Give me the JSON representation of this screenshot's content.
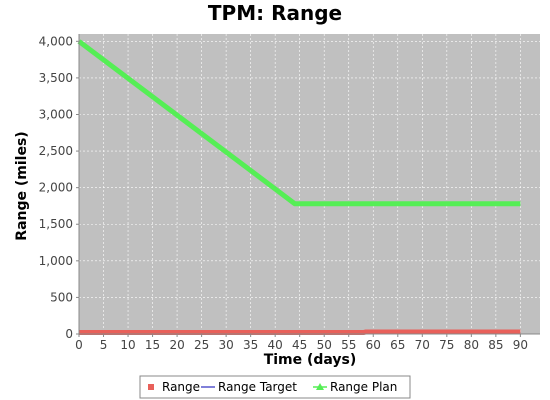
{
  "chart_data": {
    "type": "line",
    "title": "TPM: Range",
    "xlabel": "Time (days)",
    "ylabel": "Range (miles)",
    "xlim": [
      0,
      94
    ],
    "ylim": [
      0,
      4100
    ],
    "xticks": [
      0,
      5,
      10,
      15,
      20,
      25,
      30,
      35,
      40,
      45,
      50,
      55,
      60,
      65,
      70,
      75,
      80,
      85,
      90
    ],
    "yticks": [
      0,
      500,
      1000,
      1500,
      2000,
      2500,
      3000,
      3500,
      4000
    ],
    "ytick_labels": [
      "0",
      "500",
      "1,000",
      "1,500",
      "2,000",
      "2,500",
      "3,000",
      "3,500",
      "4,000"
    ],
    "grid": true,
    "legend_position": "bottom",
    "plot_background": "#c0c0c0",
    "series": [
      {
        "name": "Range",
        "color": "#e8605a",
        "marker": "square",
        "x": [
          0,
          58,
          58.5,
          90
        ],
        "y": [
          20,
          20,
          28,
          28
        ]
      },
      {
        "name": "Range Target",
        "color": "#5555cc",
        "marker": "none",
        "x": [],
        "y": []
      },
      {
        "name": "Range Plan",
        "color": "#55ee55",
        "marker": "triangle",
        "x": [
          0,
          44,
          90
        ],
        "y": [
          4000,
          1780,
          1780
        ]
      }
    ]
  }
}
